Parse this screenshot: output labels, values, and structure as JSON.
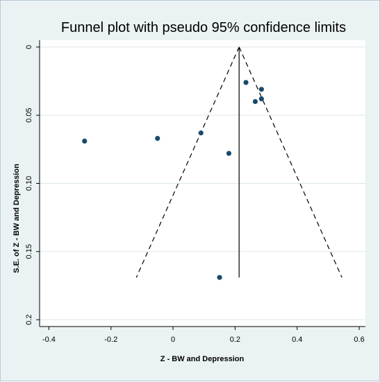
{
  "chart_data": {
    "type": "scatter",
    "title": "Funnel plot with pseudo 95% confidence limits",
    "xlabel": "Z - BW and Depression",
    "ylabel": "S.E. of Z - BW and Depression",
    "xlim": [
      -0.43,
      0.62
    ],
    "ylim": [
      0.205,
      -0.005
    ],
    "y_reversed": true,
    "x_ticks": [
      -0.4,
      -0.2,
      0,
      0.2,
      0.4,
      0.6
    ],
    "x_tick_labels": [
      "-0.4",
      "-0.2",
      "0",
      "0.2",
      "0.4",
      "0.6"
    ],
    "y_ticks": [
      0,
      0.05,
      0.1,
      0.15,
      0.2
    ],
    "y_tick_labels": [
      "0",
      "0.05",
      "0.10",
      "0.15",
      "0.2"
    ],
    "grid": "horizontal",
    "points": [
      {
        "x": -0.285,
        "y": 0.069
      },
      {
        "x": -0.05,
        "y": 0.067
      },
      {
        "x": 0.09,
        "y": 0.063
      },
      {
        "x": 0.18,
        "y": 0.078
      },
      {
        "x": 0.235,
        "y": 0.026
      },
      {
        "x": 0.265,
        "y": 0.04
      },
      {
        "x": 0.285,
        "y": 0.031
      },
      {
        "x": 0.285,
        "y": 0.038
      },
      {
        "x": 0.15,
        "y": 0.169
      }
    ],
    "pooled_estimate": 0.213,
    "funnel_max_se": 0.169,
    "funnel_z": 1.96,
    "colors": {
      "points": "#1a4a6b",
      "lines": "#000000",
      "plot_background": "#ffffff",
      "grid": "#dce7ec",
      "outer_background": "#eaf2f3"
    }
  }
}
